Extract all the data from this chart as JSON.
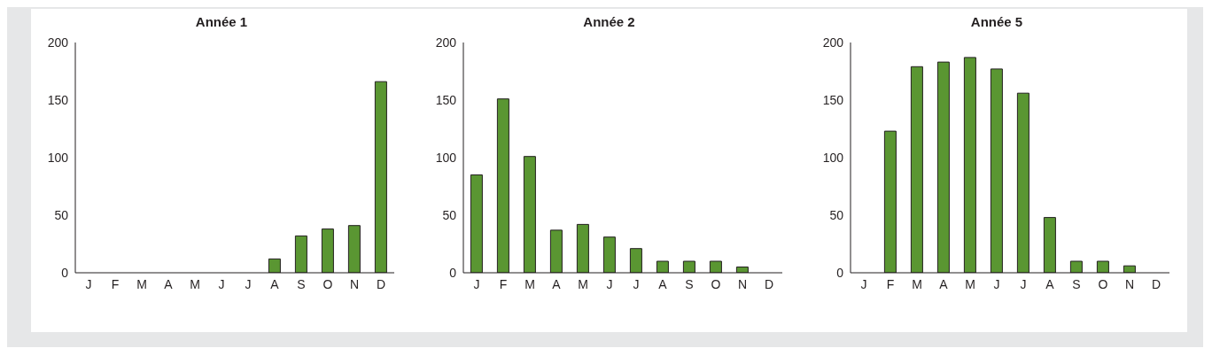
{
  "chart_data": [
    {
      "type": "bar",
      "title": "Année 1",
      "categories": [
        "J",
        "F",
        "M",
        "A",
        "M",
        "J",
        "J",
        "A",
        "S",
        "O",
        "N",
        "D"
      ],
      "values": [
        0,
        0,
        0,
        0,
        0,
        0,
        0,
        12,
        32,
        38,
        41,
        166
      ],
      "color": "#5a9632",
      "ylim": [
        0,
        200
      ],
      "yticks": [
        0,
        50,
        100,
        150,
        200
      ],
      "grid": false
    },
    {
      "type": "bar",
      "title": "Année 2",
      "categories": [
        "J",
        "F",
        "M",
        "A",
        "M",
        "J",
        "J",
        "A",
        "S",
        "O",
        "N",
        "D"
      ],
      "values": [
        85,
        151,
        101,
        37,
        42,
        31,
        21,
        10,
        10,
        10,
        5,
        0
      ],
      "color": "#5a9632",
      "ylim": [
        0,
        200
      ],
      "yticks": [
        0,
        50,
        100,
        150,
        200
      ],
      "grid": false
    },
    {
      "type": "bar",
      "title": "Année 5",
      "categories": [
        "J",
        "F",
        "M",
        "A",
        "M",
        "J",
        "J",
        "A",
        "S",
        "O",
        "N",
        "D"
      ],
      "values": [
        0,
        123,
        179,
        183,
        187,
        177,
        156,
        48,
        10,
        10,
        6,
        0
      ],
      "color": "#5a9632",
      "ylim": [
        0,
        200
      ],
      "yticks": [
        0,
        50,
        100,
        150,
        200
      ],
      "grid": false
    }
  ]
}
